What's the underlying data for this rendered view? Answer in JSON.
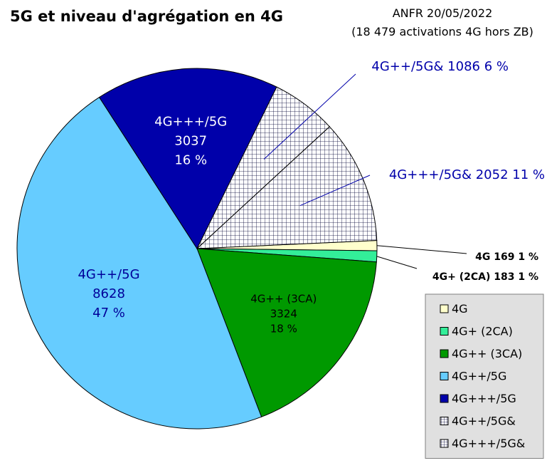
{
  "title": "5G et niveau d'agrégation en 4G",
  "source_line1": "ANFR 20/05/2022",
  "source_line2": "(18 479 activations 4G hors ZB)",
  "chart_data": {
    "type": "pie",
    "slices": [
      {
        "name": "4G",
        "value": 169,
        "percent": "1 %",
        "color": "#ffffcc",
        "pattern": "none",
        "label_mode": "external",
        "label": "4G 169 1 %"
      },
      {
        "name": "4G+ (2CA)",
        "value": 183,
        "percent": "1 %",
        "color": "#33ee99",
        "pattern": "none",
        "label_mode": "external",
        "label": "4G+ (2CA) 183 1 %"
      },
      {
        "name": "4G++ (3CA)",
        "value": 3324,
        "percent": "18 %",
        "color": "#009900",
        "pattern": "none",
        "label_mode": "internal",
        "lines": [
          "4G++ (3CA)",
          "3324",
          "18 %"
        ],
        "text_color": "#000000"
      },
      {
        "name": "4G++/5G",
        "value": 8628,
        "percent": "47 %",
        "color": "#66ccff",
        "pattern": "none",
        "label_mode": "internal",
        "lines": [
          "4G++/5G",
          "8628",
          "47 %"
        ],
        "text_color": "#000099"
      },
      {
        "name": "4G+++/5G",
        "value": 3037,
        "percent": "16 %",
        "color": "#0000aa",
        "pattern": "none",
        "label_mode": "internal",
        "lines": [
          "4G+++/5G",
          "3037",
          "16 %"
        ],
        "text_color": "#ffffff"
      },
      {
        "name": "4G++/5G&",
        "value": 1086,
        "percent": "6 %",
        "color": "#ffffff",
        "pattern": "grid",
        "label_mode": "external",
        "label": "4G++/5G& 1086 6 %"
      },
      {
        "name": "4G+++/5G&",
        "value": 2052,
        "percent": "11 %",
        "color": "#ffffff",
        "pattern": "grid",
        "label_mode": "external",
        "label": "4G+++/5G& 2052 11 %"
      }
    ],
    "legend": [
      "4G",
      "4G+ (2CA)",
      "4G++ (3CA)",
      "4G++/5G",
      "4G+++/5G",
      "4G++/5G&",
      "4G+++/5G&"
    ],
    "legend_position": "bottom-right"
  }
}
